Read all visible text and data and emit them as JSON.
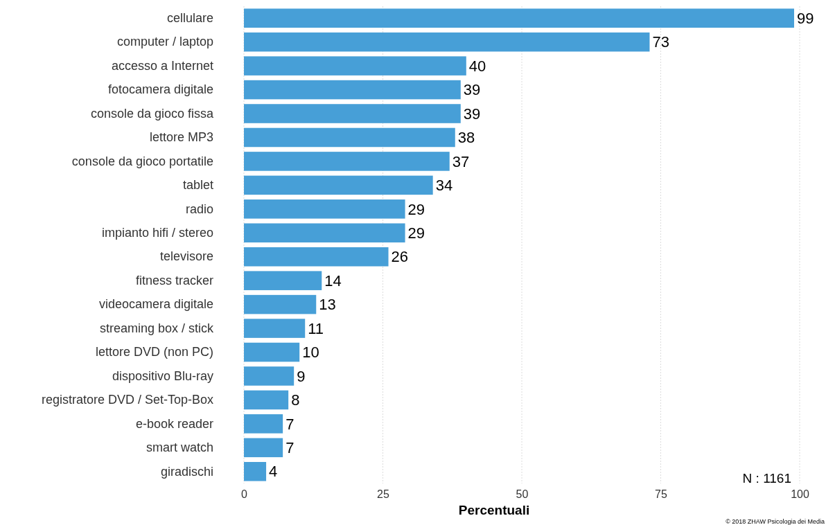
{
  "chart_data": {
    "type": "bar",
    "orientation": "horizontal",
    "xlabel": "Percentuali",
    "categories": [
      "cellulare",
      "computer / laptop",
      "accesso a Internet",
      "fotocamera digitale",
      "console da gioco fissa",
      "lettore MP3",
      "console da gioco portatile",
      "tablet",
      "radio",
      "impianto hifi / stereo",
      "televisore",
      "fitness tracker",
      "videocamera digitale",
      "streaming box / stick",
      "lettore DVD (non PC)",
      "dispositivo Blu-ray",
      "registratore DVD / Set-Top-Box",
      "e-book reader",
      "smart watch",
      "giradischi"
    ],
    "values": [
      99,
      73,
      40,
      39,
      39,
      38,
      37,
      34,
      29,
      29,
      26,
      14,
      13,
      11,
      10,
      9,
      8,
      7,
      7,
      4
    ],
    "color": "#479fd7",
    "data_labels": true,
    "grid": "x",
    "xlim": [
      0,
      100
    ],
    "xticks": [
      0,
      25,
      50,
      75,
      100
    ],
    "annotations": [
      "N : 1161",
      "© 2018 ZHAW Psicologia dei Media"
    ]
  }
}
